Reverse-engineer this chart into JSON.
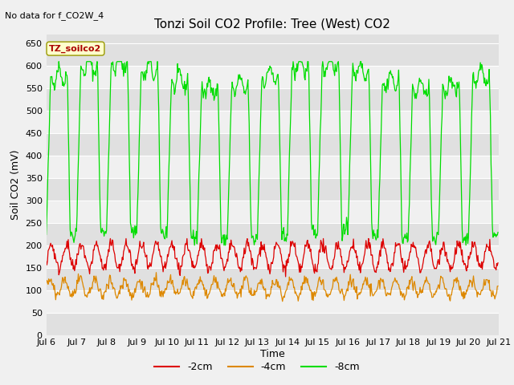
{
  "title": "Tonzi Soil CO2 Profile: Tree (West) CO2",
  "no_data_text": "No data for f_CO2W_4",
  "ylabel": "Soil CO2 (mV)",
  "xlabel": "Time",
  "ylim": [
    0,
    670
  ],
  "yticks": [
    0,
    50,
    100,
    150,
    200,
    250,
    300,
    350,
    400,
    450,
    500,
    550,
    600,
    650
  ],
  "x_start_day": 6,
  "x_end_day": 21,
  "xtick_days": [
    6,
    7,
    8,
    9,
    10,
    11,
    12,
    13,
    14,
    15,
    16,
    17,
    18,
    19,
    20,
    21
  ],
  "background_color": "#f0f0f0",
  "plot_bg_light": "#f0f0f0",
  "plot_bg_dark": "#e0e0e0",
  "grid_color": "#d0d0d0",
  "legend_label_2cm": "-2cm",
  "legend_label_4cm": "-4cm",
  "legend_label_8cm": "-8cm",
  "color_2cm": "#dd0000",
  "color_4cm": "#dd8800",
  "color_8cm": "#00dd00",
  "legend_box_color": "#ffffcc",
  "legend_box_edge": "#cccc00",
  "tz_soilco2_label": "TZ_soilco2",
  "title_fontsize": 11,
  "axis_label_fontsize": 9,
  "tick_fontsize": 8,
  "legend_fontsize": 9,
  "no_data_fontsize": 8
}
